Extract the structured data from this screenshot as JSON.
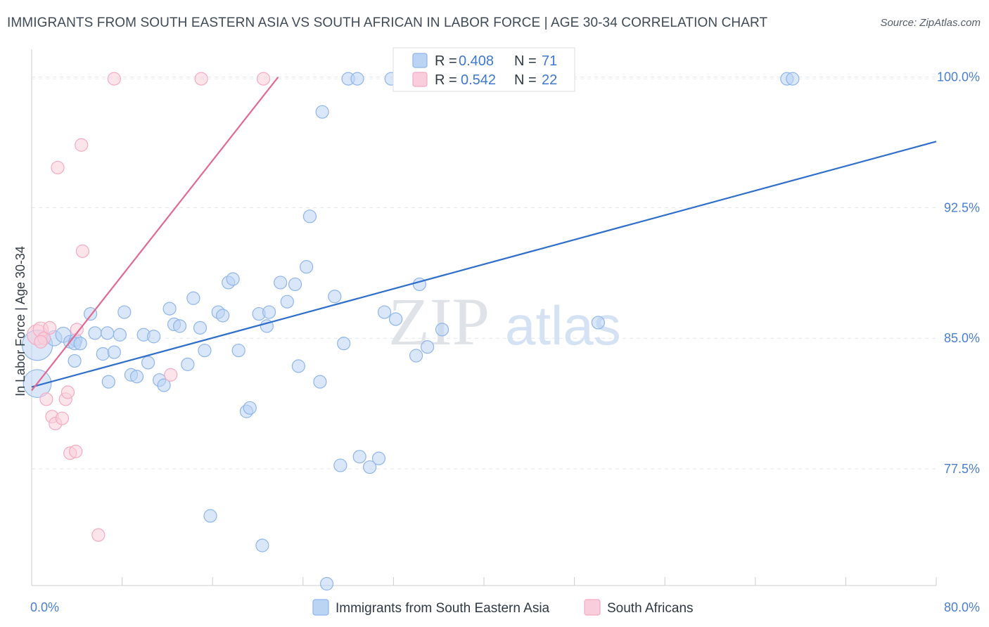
{
  "header": {
    "title": "IMMIGRANTS FROM SOUTH EASTERN ASIA VS SOUTH AFRICAN IN LABOR FORCE | AGE 30-34 CORRELATION CHART",
    "source": "Source: ZipAtlas.com"
  },
  "watermark": {
    "zip": "ZIP",
    "atlas": "atlas"
  },
  "legend_top": [
    {
      "r_label": "R = ",
      "r_value": "0.408",
      "n_label": "N = ",
      "n_value": "71"
    },
    {
      "r_label": "R = ",
      "r_value": "0.542",
      "n_label": "N = ",
      "n_value": "22"
    }
  ],
  "chart_data": {
    "type": "scatter",
    "title": "IMMIGRANTS FROM SOUTH EASTERN ASIA VS SOUTH AFRICAN IN LABOR FORCE | AGE 30-34 CORRELATION CHART",
    "xlabel": "",
    "ylabel": "In Labor Force | Age 30-34",
    "xlim": [
      0,
      80
    ],
    "ylim": [
      70.8,
      101.6
    ],
    "x_tick_labels": [
      "0.0%",
      "80.0%"
    ],
    "y_ticks": [
      77.5,
      85.0,
      92.5,
      100.0
    ],
    "y_tick_labels": [
      "77.5%",
      "85.0%",
      "92.5%",
      "100.0%"
    ],
    "grid": true,
    "legend_position": "bottom",
    "series": [
      {
        "name": "Immigrants from South Eastern Asia",
        "color": "#8fb5ea",
        "stats": {
          "R": 0.408,
          "N": 71
        },
        "trend": {
          "x": [
            0,
            80
          ],
          "y": [
            82.2,
            96.3
          ],
          "color": "#2f6fcb"
        },
        "points": [
          [
            0.5,
            84.6,
            2.4
          ],
          [
            0.5,
            82.4,
            2.2
          ],
          [
            2.0,
            85.0,
            1.2
          ],
          [
            2.8,
            85.2,
            1.2
          ],
          [
            3.4,
            84.8,
            1.0
          ],
          [
            3.9,
            84.9,
            1.0
          ],
          [
            3.8,
            84.7,
            1.0
          ],
          [
            4.3,
            84.7,
            1.0
          ],
          [
            5.2,
            86.4,
            1.0
          ],
          [
            5.6,
            85.3,
            1.0
          ],
          [
            6.7,
            85.3,
            1.0
          ],
          [
            3.8,
            83.7,
            1.0
          ],
          [
            6.3,
            84.1,
            1.0
          ],
          [
            7.3,
            84.2,
            1.0
          ],
          [
            6.8,
            82.5,
            1.0
          ],
          [
            7.8,
            85.2,
            1.0
          ],
          [
            8.2,
            86.5,
            1.0
          ],
          [
            8.8,
            82.9,
            1.0
          ],
          [
            9.3,
            82.8,
            1.0
          ],
          [
            9.9,
            85.2,
            1.0
          ],
          [
            10.3,
            83.6,
            1.0
          ],
          [
            10.8,
            85.1,
            1.0
          ],
          [
            11.3,
            82.6,
            1.0
          ],
          [
            11.7,
            82.3,
            1.0
          ],
          [
            12.2,
            86.7,
            1.0
          ],
          [
            12.6,
            85.8,
            1.0
          ],
          [
            13.1,
            85.7,
            1.0
          ],
          [
            13.8,
            83.5,
            1.0
          ],
          [
            14.3,
            87.3,
            1.0
          ],
          [
            14.9,
            85.6,
            1.0
          ],
          [
            15.3,
            84.3,
            1.0
          ],
          [
            15.8,
            74.8,
            1.0
          ],
          [
            16.5,
            86.5,
            1.0
          ],
          [
            16.9,
            86.3,
            1.0
          ],
          [
            17.4,
            88.2,
            1.0
          ],
          [
            17.8,
            88.4,
            1.0
          ],
          [
            18.3,
            84.3,
            1.0
          ],
          [
            19.0,
            80.8,
            1.0
          ],
          [
            19.3,
            81.0,
            1.0
          ],
          [
            20.1,
            86.4,
            1.0
          ],
          [
            20.4,
            73.1,
            1.0
          ],
          [
            20.8,
            85.7,
            1.0
          ],
          [
            21.0,
            86.5,
            1.0
          ],
          [
            22.0,
            88.2,
            1.0
          ],
          [
            22.6,
            87.1,
            1.0
          ],
          [
            23.3,
            88.1,
            1.0
          ],
          [
            23.6,
            83.4,
            1.0
          ],
          [
            24.3,
            89.1,
            1.0
          ],
          [
            24.6,
            92.0,
            1.0
          ],
          [
            25.5,
            82.5,
            1.0
          ],
          [
            25.7,
            98.0,
            1.0
          ],
          [
            26.1,
            70.9,
            1.0
          ],
          [
            26.8,
            87.4,
            1.0
          ],
          [
            27.3,
            77.7,
            1.0
          ],
          [
            27.6,
            84.7,
            1.0
          ],
          [
            28.0,
            99.9,
            1.0
          ],
          [
            28.8,
            99.9,
            1.0
          ],
          [
            29.0,
            78.2,
            1.0
          ],
          [
            29.9,
            77.6,
            1.0
          ],
          [
            30.7,
            78.1,
            1.0
          ],
          [
            31.2,
            86.5,
            1.0
          ],
          [
            31.8,
            99.9,
            1.0
          ],
          [
            32.2,
            86.1,
            1.0
          ],
          [
            34.0,
            84.0,
            1.0
          ],
          [
            34.3,
            88.1,
            1.0
          ],
          [
            35.0,
            84.5,
            1.0
          ],
          [
            36.3,
            85.5,
            1.0
          ],
          [
            42.9,
            99.9,
            1.0
          ],
          [
            50.1,
            85.9,
            1.0
          ],
          [
            66.8,
            99.9,
            1.0
          ],
          [
            67.3,
            99.9,
            1.0
          ]
        ]
      },
      {
        "name": "South Africans",
        "color": "#f4aac2",
        "stats": {
          "R": 0.542,
          "N": 22
        },
        "trend": {
          "x": [
            0,
            21.8
          ],
          "y": [
            82.0,
            100.0
          ],
          "color": "#e06a94"
        },
        "points": [
          [
            0.5,
            85.2,
            1.6
          ],
          [
            0.8,
            85.5,
            1.2
          ],
          [
            1.1,
            85.0,
            1.0
          ],
          [
            1.6,
            85.6,
            1.0
          ],
          [
            1.3,
            81.5,
            1.0
          ],
          [
            1.8,
            80.5,
            1.0
          ],
          [
            2.1,
            80.1,
            1.0
          ],
          [
            2.3,
            94.8,
            1.0
          ],
          [
            2.7,
            80.4,
            1.0
          ],
          [
            3.0,
            81.5,
            1.0
          ],
          [
            3.2,
            81.9,
            1.0
          ],
          [
            3.4,
            78.4,
            1.0
          ],
          [
            3.9,
            78.5,
            1.0
          ],
          [
            4.0,
            85.5,
            1.0
          ],
          [
            4.4,
            96.1,
            1.0
          ],
          [
            4.5,
            90.0,
            1.0
          ],
          [
            5.9,
            73.7,
            1.0
          ],
          [
            7.3,
            99.9,
            1.0
          ],
          [
            12.3,
            82.9,
            1.0
          ],
          [
            15.0,
            99.9,
            1.0
          ],
          [
            20.5,
            99.9,
            1.0
          ],
          [
            0.8,
            84.8,
            1.0
          ]
        ]
      }
    ]
  }
}
